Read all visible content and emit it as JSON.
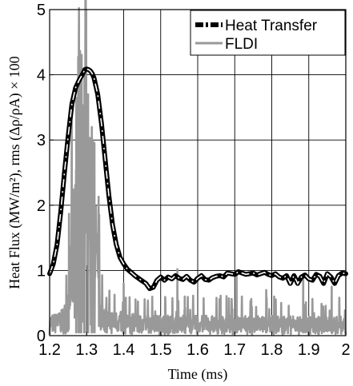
{
  "chart_data": {
    "type": "line",
    "xlabel": "Time (ms)",
    "ylabel": "Heat Flux (MW/m²), rms (Δρ/ρA) × 100",
    "xlim": [
      1.2,
      2.0
    ],
    "ylim": [
      0,
      5
    ],
    "xticks": [
      "1.2",
      "1.3",
      "1.4",
      "1.5",
      "1.6",
      "1.7",
      "1.8",
      "1.9",
      "2"
    ],
    "yticks": [
      "0",
      "1",
      "2",
      "3",
      "4",
      "5"
    ],
    "grid": true,
    "legend": {
      "placement": "top-right",
      "entries": [
        "Heat Transfer",
        "FLDI"
      ]
    },
    "series": [
      {
        "name": "Heat Transfer",
        "color": "#000000",
        "style": "dash-dot-white",
        "x": [
          1.2,
          1.21,
          1.22,
          1.23,
          1.24,
          1.25,
          1.26,
          1.27,
          1.28,
          1.29,
          1.295,
          1.3,
          1.305,
          1.31,
          1.315,
          1.32,
          1.33,
          1.34,
          1.35,
          1.36,
          1.37,
          1.38,
          1.39,
          1.4,
          1.41,
          1.42,
          1.43,
          1.44,
          1.45,
          1.46,
          1.47,
          1.48,
          1.49,
          1.5,
          1.51,
          1.52,
          1.53,
          1.54,
          1.55,
          1.56,
          1.57,
          1.58,
          1.59,
          1.6,
          1.61,
          1.62,
          1.63,
          1.64,
          1.65,
          1.66,
          1.67,
          1.68,
          1.69,
          1.7,
          1.71,
          1.72,
          1.73,
          1.74,
          1.75,
          1.76,
          1.77,
          1.78,
          1.79,
          1.8,
          1.81,
          1.82,
          1.83,
          1.84,
          1.85,
          1.86,
          1.87,
          1.88,
          1.89,
          1.9,
          1.91,
          1.92,
          1.93,
          1.94,
          1.95,
          1.96,
          1.97,
          1.98,
          1.99,
          2.0
        ],
        "y": [
          0.95,
          1.1,
          1.4,
          1.9,
          2.5,
          3.05,
          3.55,
          3.8,
          3.92,
          4.02,
          4.08,
          4.09,
          4.08,
          4.06,
          4.02,
          3.95,
          3.7,
          3.25,
          2.7,
          2.15,
          1.7,
          1.4,
          1.2,
          1.1,
          1.02,
          0.97,
          0.92,
          0.88,
          0.84,
          0.8,
          0.72,
          0.74,
          0.85,
          0.9,
          0.85,
          0.9,
          0.87,
          0.92,
          0.88,
          0.86,
          0.91,
          0.85,
          0.82,
          0.88,
          0.92,
          0.86,
          0.85,
          0.89,
          0.91,
          0.92,
          0.9,
          0.96,
          0.95,
          0.94,
          0.98,
          0.96,
          0.94,
          0.95,
          0.96,
          0.93,
          0.95,
          0.97,
          0.94,
          0.92,
          0.95,
          0.9,
          0.88,
          0.92,
          0.8,
          0.92,
          0.8,
          0.9,
          0.93,
          0.87,
          0.85,
          0.94,
          0.91,
          0.8,
          0.95,
          0.9,
          0.8,
          0.92,
          0.96,
          0.95
        ]
      },
      {
        "name": "FLDI",
        "color": "#999999",
        "style": "solid",
        "x_start": 1.2,
        "x_end": 2.0,
        "noise_seed": 7,
        "envelope": [
          {
            "x": 1.2,
            "y": 0.3
          },
          {
            "x": 1.23,
            "y": 0.35
          },
          {
            "x": 1.25,
            "y": 0.6
          },
          {
            "x": 1.26,
            "y": 1.9
          },
          {
            "x": 1.27,
            "y": 2.9
          },
          {
            "x": 1.28,
            "y": 3.2
          },
          {
            "x": 1.29,
            "y": 3.5
          },
          {
            "x": 1.3,
            "y": 3.3
          },
          {
            "x": 1.31,
            "y": 3.1
          },
          {
            "x": 1.32,
            "y": 2.9
          },
          {
            "x": 1.33,
            "y": 1.2
          },
          {
            "x": 1.34,
            "y": 0.5
          },
          {
            "x": 1.36,
            "y": 0.38
          },
          {
            "x": 1.45,
            "y": 0.3
          },
          {
            "x": 2.0,
            "y": 0.28
          }
        ],
        "peaks": [
          {
            "x": 1.272,
            "y": 3.6
          },
          {
            "x": 1.279,
            "y": 4.65
          },
          {
            "x": 1.285,
            "y": 3.9
          },
          {
            "x": 1.294,
            "y": 4.0
          },
          {
            "x": 1.304,
            "y": 3.7
          },
          {
            "x": 1.314,
            "y": 3.2
          },
          {
            "x": 1.321,
            "y": 2.95
          },
          {
            "x": 1.4,
            "y": 0.8
          },
          {
            "x": 1.545,
            "y": 1.02
          },
          {
            "x": 1.565,
            "y": 0.6
          },
          {
            "x": 1.705,
            "y": 1.0
          },
          {
            "x": 1.785,
            "y": 0.7
          },
          {
            "x": 1.885,
            "y": 0.95
          },
          {
            "x": 1.962,
            "y": 0.75
          }
        ]
      }
    ]
  }
}
